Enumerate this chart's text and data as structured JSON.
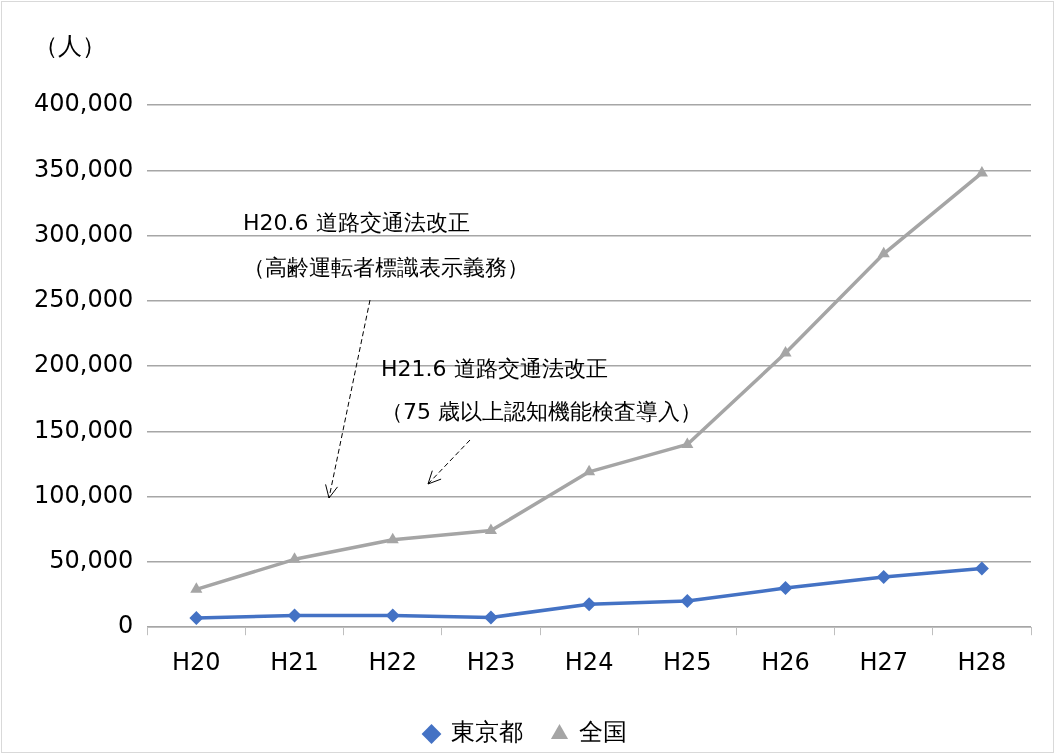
{
  "chart_data": {
    "type": "line",
    "ylabel": "（人）",
    "categories": [
      "H20",
      "H21",
      "H22",
      "H23",
      "H24",
      "H25",
      "H26",
      "H27",
      "H28"
    ],
    "series": [
      {
        "name": "東京都",
        "color": "#4472c4",
        "marker": "diamond",
        "values": [
          7000,
          9000,
          9000,
          7500,
          17500,
          20000,
          30000,
          38500,
          45000
        ]
      },
      {
        "name": "全国",
        "color": "#a5a5a5",
        "marker": "triangle",
        "values": [
          29000,
          52000,
          67000,
          74000,
          119000,
          140000,
          210000,
          286000,
          348000
        ]
      }
    ],
    "ylim": [
      0,
      400000
    ],
    "yticks": [
      0,
      {
        "value": 50000,
        "label": "50,000"
      },
      {
        "value": 100000,
        "label": "100,000"
      },
      {
        "value": 150000,
        "label": "150,000"
      },
      {
        "value": 200000,
        "label": "200,000"
      },
      {
        "value": 250000,
        "label": "250,000"
      },
      {
        "value": 300000,
        "label": "300,000"
      },
      {
        "value": 350000,
        "label": "350,000"
      },
      {
        "value": 400000,
        "label": "400,000"
      }
    ],
    "grid": "y",
    "legend": "bottom",
    "line_style": "solid",
    "annotations": [
      "H20.6 道路交通法改正",
      "（高齢運転者標識表示義務）",
      "H21.6 道路交通法改正",
      "（75 歳以上認知機能検査導入）"
    ]
  }
}
